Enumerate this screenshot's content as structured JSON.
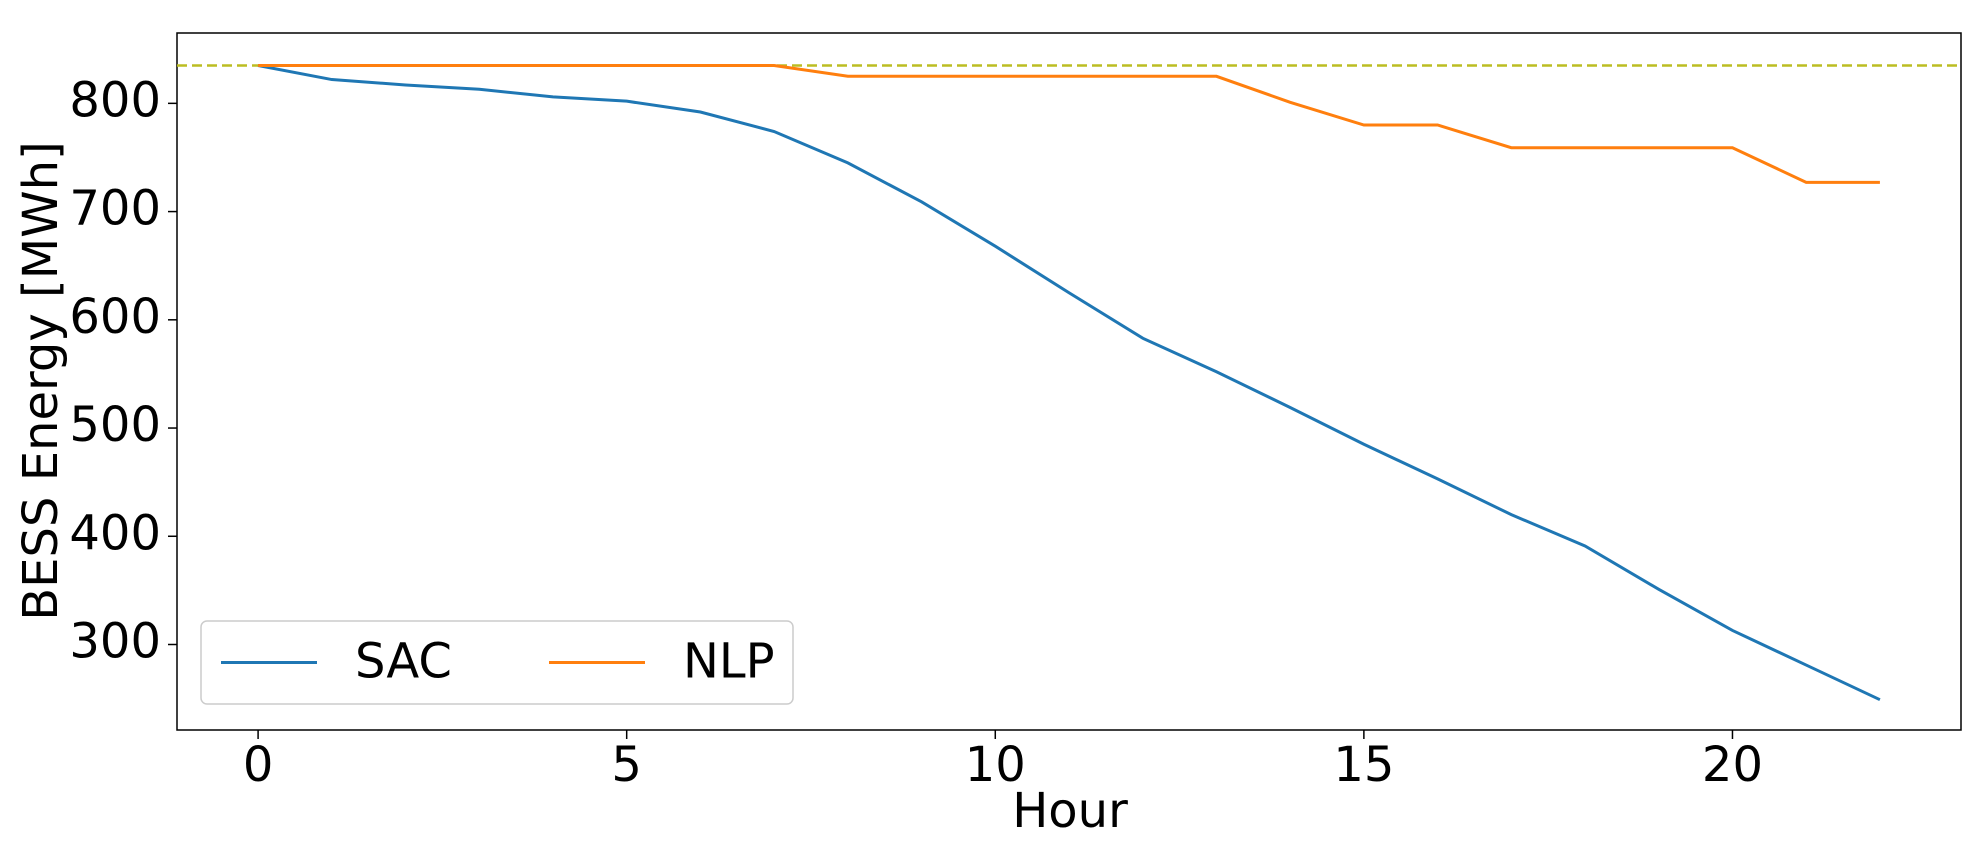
{
  "chart_data": {
    "type": "line",
    "xlabel": "Hour",
    "ylabel": "BESS Energy [MWh]",
    "x": [
      0,
      1,
      2,
      3,
      4,
      5,
      6,
      7,
      8,
      9,
      10,
      11,
      12,
      13,
      14,
      15,
      16,
      17,
      18,
      19,
      20,
      21,
      22
    ],
    "series": [
      {
        "name": "SAC",
        "color": "#1f77b4",
        "values": [
          835,
          822,
          817,
          813,
          806,
          802,
          792,
          774,
          745,
          709,
          668,
          625,
          583,
          552,
          519,
          485,
          453,
          420,
          391,
          351,
          313,
          281,
          249
        ]
      },
      {
        "name": "NLP",
        "color": "#ff7f0e",
        "values": [
          835,
          835,
          835,
          835,
          835,
          835,
          835,
          835,
          825,
          825,
          825,
          825,
          825,
          825,
          801,
          780,
          780,
          759,
          759,
          759,
          759,
          727,
          727
        ]
      }
    ],
    "reference_line": {
      "value": 835,
      "color": "#bcbd22"
    },
    "xlim": [
      -1.1,
      23.1
    ],
    "xticks": [
      0,
      5,
      10,
      15,
      20
    ],
    "ylim": [
      221,
      865
    ],
    "yticks": [
      300,
      400,
      500,
      600,
      700,
      800
    ],
    "legend": "lower left",
    "grid": false
  }
}
